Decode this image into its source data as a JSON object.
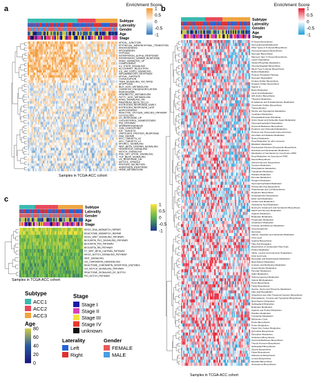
{
  "chart_data": [
    {
      "panel": "a",
      "type": "heatmap",
      "colorbar_title": "Enrichment Score",
      "colorbar_ticks": [
        "1",
        "0.5",
        "0",
        "-0.5",
        "-1"
      ],
      "colors": {
        "high": "#f39c3b",
        "mid": "#ffffff",
        "low": "#3a7fc2"
      },
      "annotation_tracks": [
        "Subtype",
        "Laterality",
        "Gender",
        "Age",
        "Stage"
      ],
      "xlabel": "Samples in TCGA-ACC cohort",
      "rows": [
        "APICAL_JUNCTION",
        "EPITHELIAL_MESENCHYMAL_TRANSITION",
        "ANGIOGENESIS",
        "MYOGENESIS",
        "HYPOXIA",
        "INTERFERON_ALPHA_RESPONSE",
        "INTERFERON_GAMMA_RESPONSE",
        "KRAS_SIGNALING_UP",
        "COMPLEMENT",
        "IL2_STAT5_SIGNALING",
        "ALLOGRAFT_REJECTION",
        "IL6_JAK_STAT3_SIGNALING",
        "INFLAMMATORY_RESPONSE",
        "APICAL_SURFACE",
        "COAGULATION",
        "TNFA_SIGNALING_VIA_NFKB",
        "APOPTOSIS",
        "BILE_ACID_METABOLISM",
        "OXIDATIVE_PHOSPHORYLATION",
        "PEROXISOME",
        "XENOBIOTIC_METABOLISM",
        "FATTY_ACID_METABOLISM",
        "KRAS_SIGNALING_DN",
        "PANCREAS_BETA_CELLS",
        "ESTROGEN_RESPONSE_EARLY",
        "ESTROGEN_RESPONSE_LATE",
        "ADIPOGENESIS",
        "REACTIVE_OXYGEN_SPECIES_PATHWAY",
        "GLYCOLYSIS",
        "UV_RESPONSE_UP",
        "CHOLESTEROL_HOMEOSTASIS",
        "P53_PATHWAY",
        "SPERMATOGENESIS",
        "G2M_CHECKPOINT",
        "E2F_TARGETS",
        "UNFOLDED_PROTEIN_RESPONSE",
        "DNA_REPAIR",
        "MYC_TARGETS_V2",
        "MYC_TARGETS_V1",
        "MTORC1_SIGNALING",
        "WNT_BETA_CATENIN_SIGNALING",
        "HEDGEHOG_SIGNALING",
        "NOTCH_SIGNALING",
        "PI3K_AKT_MTOR_SIGNALING",
        "TGF_BETA_SIGNALING",
        "UV_RESPONSE_DN",
        "MITOTIC_SPINDLE",
        "PROTEIN_SECRETION",
        "ANDROGEN_RESPONSE",
        "HEME_METABOLISM"
      ]
    },
    {
      "panel": "b",
      "type": "heatmap",
      "colorbar_title": "Enrichment Score",
      "colorbar_ticks": [
        "1",
        "0.5",
        "0",
        "-0.5",
        "-1"
      ],
      "colors": {
        "high": "#e8283b",
        "mid": "#ffffff",
        "low": "#2aa5e0"
      },
      "annotation_tracks": [
        "Subtype",
        "Laterality",
        "Gender",
        "Age",
        "Stage"
      ],
      "xlabel": "Samples in TCGA-ACC cohort",
      "rows": [
        "N-Glycan Biosynthesis",
        "Glycosylphosphatidylinositol",
        "Other Types of O-Glycan Biosynthesis",
        "Glycosaminoglycan Biosynthesis",
        "Glycogen Biosynthesis",
        "Mannose Type O-Glycan Biosynthesis",
        "Lysine Degradation",
        "Inositol Phosphate Metabolism",
        "Glycosphingolipid Biosynthesis",
        "Mucin Type O-Glycan Biosynthesis",
        "Retinol Metabolism",
        "Pentose Phosphate Pathway",
        "Glycogen Degradation",
        "Keratan Sulfate Biosynthesis",
        "Heparan Sulfate Biosynthesis",
        "Vitamin K",
        "Biotin Metabolism",
        "Lipoic Acid Metabolism",
        "GPI-Anchor Biosynthesis",
        "Thiamine Metabolism",
        "D-Galactose and D-Galactoamine Metabolism",
        "Chondroitin Sulfate Biosynthesis",
        "Transsulfuration",
        "Taurine and Hypotaurine Metabolism",
        "Cardiolipin Metabolism",
        "Phosphatidylinositol Phosphate",
        "Amino Sugar and Nucleotide Sugar Metabolism",
        "Glycerophospholipid Degradation",
        "Terpenoid Backbone Biosynthesis",
        "Porphyrin and Chlorophyll Metabolism",
        "Pentose and Glucuronate Interconversions",
        "Ascorbate and Aldarate Metabolism",
        "Retinol Metabolism",
        "Drug Metabolism by other enzymes",
        "Riboflavin Metabolism",
        "Nicotinamide Adenine Dinucleotide Biosynthesis",
        "Nicotinate and Nicotinamide Metabolism",
        "Metabolism of Xenobiotics by Cytochrome P450",
        "Drug Metabolism by Cytochrome P450",
        "Steroid Biosynthesis",
        "Steroid Hormone Biosynthesis",
        "Tyrosine Metabolism",
        "Phenylalanine Metabolism",
        "Tryptophan Metabolism",
        "Histidine Metabolism",
        "Pyruvate Metabolism",
        "Nitrogen Metabolism",
        "Glycerophospholipid Metabolism",
        "Primary Bile Acid Biosynthesis",
        "Pantothenate and CoA Biosynthesis",
        "Dopamine Biosynthesis",
        "Norepinephrine Biosynthesis",
        "Ether Lipid Metabolism",
        "Linoleic Acid Metabolism",
        "Arachidonic Acid Metabolism",
        "Neomycin, Kanamycin and Gentamicin Biosynthesis",
        "Starch and Sucrose Metabolism",
        "Arginine Metabolism",
        "Butanoate Metabolism",
        "Propanoate Metabolism",
        "Glutathione Metabolism",
        "Fructose and Mannose Metabolism",
        "Gluconeogenesis",
        "Glycolysis",
        "Alanine, Aspartate and Glutamate Metabolism",
        "Urea Cycle",
        "Arginine Biosynthesis",
        "Fatty Acid Elongation",
        "Biosynthesis of Unsaturated Fatty Acids",
        "Proline Metabolism",
        "Valine, Leucine and Isoleucine Degradation",
        "Citric Acid Cycle",
        "Glyoxylate and Dicarboxylate Metabolism",
        "Beta-Alanine Metabolism",
        "Cysteine and Methionine Metabolism",
        "Ketone Bodies Metabolism",
        "Pyruvate Metabolism",
        "Sulfur Metabolism",
        "Selenocompound Metabolism",
        "Vitamin B6 Metabolism",
        "Heme Biosynthesis",
        "Folate Biosynthesis",
        "Glycine, Serine and Threonine Metabolism",
        "Fatty Acid Degradation",
        "Ubiquinone and other Terpenoid-Quinone Biosynthesis",
        "Phenylalanine, Tyrosine and Tryptophan Biosynthesis",
        "Beta-Alanine Metabolism",
        "Sphingolipid Metabolism",
        "Butanoate Metabolism",
        "Arginine and Proline Metabolism",
        "Histidine Metabolism",
        "Tryptophan Metabolism",
        "Methionine Cycle",
        "Purine Biosynthesis",
        "Purine Metabolism",
        "Folate One Carbon Metabolism",
        "Pyrimidine Biosynthesis",
        "Pyrimidine Metabolism",
        "Cholesterol Biosynthesis",
        "Terpenoid Backbone Biosynthesis",
        "Thyroid Hormone Biosynthesis",
        "Sphingolipid Biosynthesis",
        "Glycine Biosynthesis",
        "Folate Biosynthesis",
        "Aldosterone Biosynthesis",
        "Cortisol Biosynthesis",
        "Estradiol Biosynthesis",
        "Testosterone Biosynthesis"
      ]
    },
    {
      "panel": "c",
      "type": "heatmap",
      "colorbar_title": "",
      "colorbar_ticks": [
        "1",
        "0.5",
        "0",
        "-0.5",
        "-1"
      ],
      "colors": {
        "high": "#f5e23a",
        "mid": "#5ab34a",
        "low": "#1c3c8c"
      },
      "annotation_tracks": [
        "Subtype",
        "Laterality",
        "Gender",
        "Age",
        "Stage"
      ],
      "xlabel": "Samples in TCGA-ACC cohort",
      "rows": [
        "KEGG_DNA_MISMATCH_REPAIR",
        "REACTOME_MISMATCH_REPAIR",
        "KEGG_WNT_SIGNALING_PATHWAY",
        "BIOCARTA_PS1_SIGNALING_PATHWAY",
        "BIOCARTA_P53_PATHWAY",
        "BIOCARTA_RB_PATHWAY",
        "ST_WNT_BETA_CATENIN_PATHWAY",
        "KEGG_NOTCH_SIGNALING_PATHWAY",
        "WNT_SIGNALING",
        "GO_CHROMATIN_REMODELING",
        "REACTOME_CHROMATIN_MODIFYING_ENZYMES",
        "GO_NOTCH_SIGNALING_PATHWAY",
        "REACTOME_SIGNALING_BY_NOTCH",
        "PID_NOTCH_PATHWAY"
      ]
    }
  ],
  "legends": {
    "subtype": {
      "title": "Subtype",
      "items": [
        {
          "label": "ACC1",
          "color": "#39b9b0"
        },
        {
          "label": "ACC2",
          "color": "#e8485a"
        },
        {
          "label": "ACC3",
          "color": "#f0a540"
        }
      ]
    },
    "stage": {
      "title": "Stage",
      "items": [
        {
          "label": "Stage I",
          "color": "#1a1aa8"
        },
        {
          "label": "Stage II",
          "color": "#d63fb8"
        },
        {
          "label": "Stage III",
          "color": "#f2e33a"
        },
        {
          "label": "Stage IV",
          "color": "#e53a2e"
        },
        {
          "label": "unknown",
          "color": "#111111"
        }
      ]
    },
    "age": {
      "title": "Age",
      "ticks": [
        "80",
        "60",
        "40",
        "20",
        "0"
      ],
      "colors": [
        "#c8c84a",
        "#2a5aa0",
        "#1a1a80"
      ]
    },
    "laterality": {
      "title": "Laterality",
      "items": [
        {
          "label": "Left",
          "color": "#2563d6"
        },
        {
          "label": "Right",
          "color": "#e03030"
        }
      ]
    },
    "gender": {
      "title": "Gender",
      "items": [
        {
          "label": "FEMALE",
          "color": "#e85a5a"
        },
        {
          "label": "MALE",
          "color": "#4a9de0"
        }
      ]
    }
  }
}
